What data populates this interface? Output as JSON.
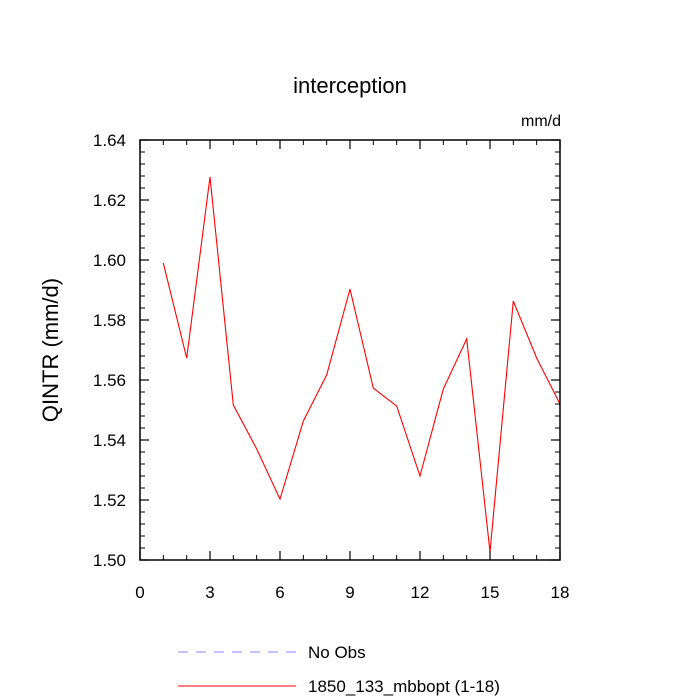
{
  "chart_data": {
    "type": "line",
    "title": "interception",
    "units_label": "mm/d",
    "ylabel": "QINTR  (mm/d)",
    "xlabel": "",
    "xlim": [
      0,
      18
    ],
    "ylim": [
      1.5,
      1.64
    ],
    "xticks": [
      0,
      3,
      6,
      9,
      12,
      15,
      18
    ],
    "yticks": [
      "1.50",
      "1.52",
      "1.54",
      "1.56",
      "1.58",
      "1.60",
      "1.62",
      "1.64"
    ],
    "grid": false,
    "legend_position": "bottom",
    "series": [
      {
        "name": "No Obs",
        "color": "#8888ff",
        "dash": true,
        "x": [],
        "y": []
      },
      {
        "name": "1850_133_mbbopt (1-18)",
        "color": "#ff0000",
        "dash": false,
        "x": [
          1,
          2,
          3,
          4,
          5,
          6,
          7,
          8,
          9,
          10,
          11,
          12,
          13,
          14,
          15,
          16,
          17,
          18
        ],
        "y": [
          1.599,
          1.5673,
          1.6277,
          1.5517,
          1.537,
          1.5203,
          1.5463,
          1.5617,
          1.5903,
          1.5573,
          1.5513,
          1.528,
          1.557,
          1.5737,
          1.5027,
          1.5863,
          1.5673,
          1.552
        ]
      }
    ]
  }
}
